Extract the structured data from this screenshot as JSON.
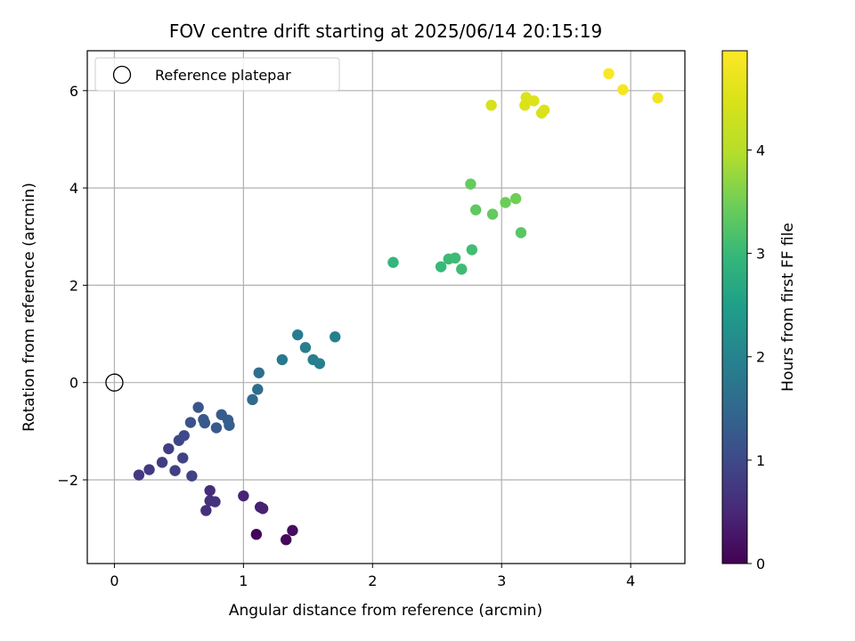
{
  "chart_data": {
    "type": "scatter",
    "title": "FOV centre drift starting at 2025/06/14 20:15:19",
    "xlabel": "Angular distance from reference (arcmin)",
    "ylabel": "Rotation from reference (arcmin)",
    "xlim": [
      -0.21,
      4.42
    ],
    "ylim": [
      -3.72,
      6.82
    ],
    "xticks": [
      0,
      1,
      2,
      3,
      4
    ],
    "xtick_labels": [
      "0",
      "1",
      "2",
      "3",
      "4"
    ],
    "yticks": [
      -2,
      0,
      2,
      4,
      6
    ],
    "ytick_labels": [
      "−2",
      "0",
      "2",
      "4",
      "6"
    ],
    "grid": true,
    "legend": {
      "position": "upper-left",
      "entries": [
        "Reference platepar"
      ]
    },
    "reference_point": {
      "x": 0,
      "y": 0
    },
    "colorbar": {
      "label": "Hours from first FF file",
      "colormap": "viridis",
      "range": [
        0,
        4.96
      ],
      "ticks": [
        0,
        1,
        2,
        3,
        4
      ],
      "tick_labels": [
        "0",
        "1",
        "2",
        "3",
        "4"
      ]
    },
    "points": [
      {
        "x": 1.1,
        "y": -3.12,
        "c": 0.05
      },
      {
        "x": 1.33,
        "y": -3.23,
        "c": 0.1
      },
      {
        "x": 1.38,
        "y": -3.04,
        "c": 0.15
      },
      {
        "x": 1.13,
        "y": -2.56,
        "c": 0.4
      },
      {
        "x": 1.15,
        "y": -2.59,
        "c": 0.42
      },
      {
        "x": 1.0,
        "y": -2.33,
        "c": 0.45
      },
      {
        "x": 0.74,
        "y": -2.22,
        "c": 0.55
      },
      {
        "x": 0.71,
        "y": -2.63,
        "c": 0.6
      },
      {
        "x": 0.74,
        "y": -2.43,
        "c": 0.62
      },
      {
        "x": 0.78,
        "y": -2.45,
        "c": 0.65
      },
      {
        "x": 0.19,
        "y": -1.9,
        "c": 0.75
      },
      {
        "x": 0.27,
        "y": -1.79,
        "c": 0.77
      },
      {
        "x": 0.37,
        "y": -1.64,
        "c": 0.8
      },
      {
        "x": 0.42,
        "y": -1.36,
        "c": 0.82
      },
      {
        "x": 0.47,
        "y": -1.81,
        "c": 0.85
      },
      {
        "x": 0.53,
        "y": -1.55,
        "c": 0.88
      },
      {
        "x": 0.6,
        "y": -1.92,
        "c": 0.9
      },
      {
        "x": 0.5,
        "y": -1.19,
        "c": 0.95
      },
      {
        "x": 0.54,
        "y": -1.09,
        "c": 1.0
      },
      {
        "x": 0.59,
        "y": -0.82,
        "c": 1.15
      },
      {
        "x": 0.65,
        "y": -0.51,
        "c": 1.2
      },
      {
        "x": 0.69,
        "y": -0.76,
        "c": 1.22
      },
      {
        "x": 0.7,
        "y": -0.83,
        "c": 1.24
      },
      {
        "x": 0.79,
        "y": -0.93,
        "c": 1.27
      },
      {
        "x": 0.83,
        "y": -0.66,
        "c": 1.3
      },
      {
        "x": 0.88,
        "y": -0.77,
        "c": 1.32
      },
      {
        "x": 0.89,
        "y": -0.88,
        "c": 1.34
      },
      {
        "x": 1.07,
        "y": -0.35,
        "c": 1.55
      },
      {
        "x": 1.11,
        "y": -0.14,
        "c": 1.58
      },
      {
        "x": 1.12,
        "y": 0.2,
        "c": 1.6
      },
      {
        "x": 1.3,
        "y": 0.47,
        "c": 1.8
      },
      {
        "x": 1.42,
        "y": 0.98,
        "c": 1.85
      },
      {
        "x": 1.48,
        "y": 0.72,
        "c": 1.88
      },
      {
        "x": 1.54,
        "y": 0.47,
        "c": 1.9
      },
      {
        "x": 1.59,
        "y": 0.39,
        "c": 1.92
      },
      {
        "x": 1.71,
        "y": 0.94,
        "c": 1.95
      },
      {
        "x": 2.16,
        "y": 2.47,
        "c": 2.95
      },
      {
        "x": 2.53,
        "y": 2.38,
        "c": 3.0
      },
      {
        "x": 2.59,
        "y": 2.54,
        "c": 3.03
      },
      {
        "x": 2.64,
        "y": 2.56,
        "c": 3.05
      },
      {
        "x": 2.69,
        "y": 2.33,
        "c": 3.07
      },
      {
        "x": 2.77,
        "y": 2.73,
        "c": 3.1
      },
      {
        "x": 2.76,
        "y": 4.08,
        "c": 3.4
      },
      {
        "x": 2.8,
        "y": 3.55,
        "c": 3.35
      },
      {
        "x": 2.93,
        "y": 3.46,
        "c": 3.38
      },
      {
        "x": 3.03,
        "y": 3.7,
        "c": 3.45
      },
      {
        "x": 3.11,
        "y": 3.78,
        "c": 3.48
      },
      {
        "x": 3.15,
        "y": 3.08,
        "c": 3.3
      },
      {
        "x": 2.92,
        "y": 5.7,
        "c": 4.45
      },
      {
        "x": 3.18,
        "y": 5.7,
        "c": 4.5
      },
      {
        "x": 3.19,
        "y": 5.86,
        "c": 4.52
      },
      {
        "x": 3.25,
        "y": 5.79,
        "c": 4.55
      },
      {
        "x": 3.31,
        "y": 5.54,
        "c": 4.48
      },
      {
        "x": 3.33,
        "y": 5.6,
        "c": 4.5
      },
      {
        "x": 3.83,
        "y": 6.35,
        "c": 4.9
      },
      {
        "x": 3.94,
        "y": 6.02,
        "c": 4.85
      },
      {
        "x": 4.21,
        "y": 5.85,
        "c": 4.8
      }
    ]
  }
}
